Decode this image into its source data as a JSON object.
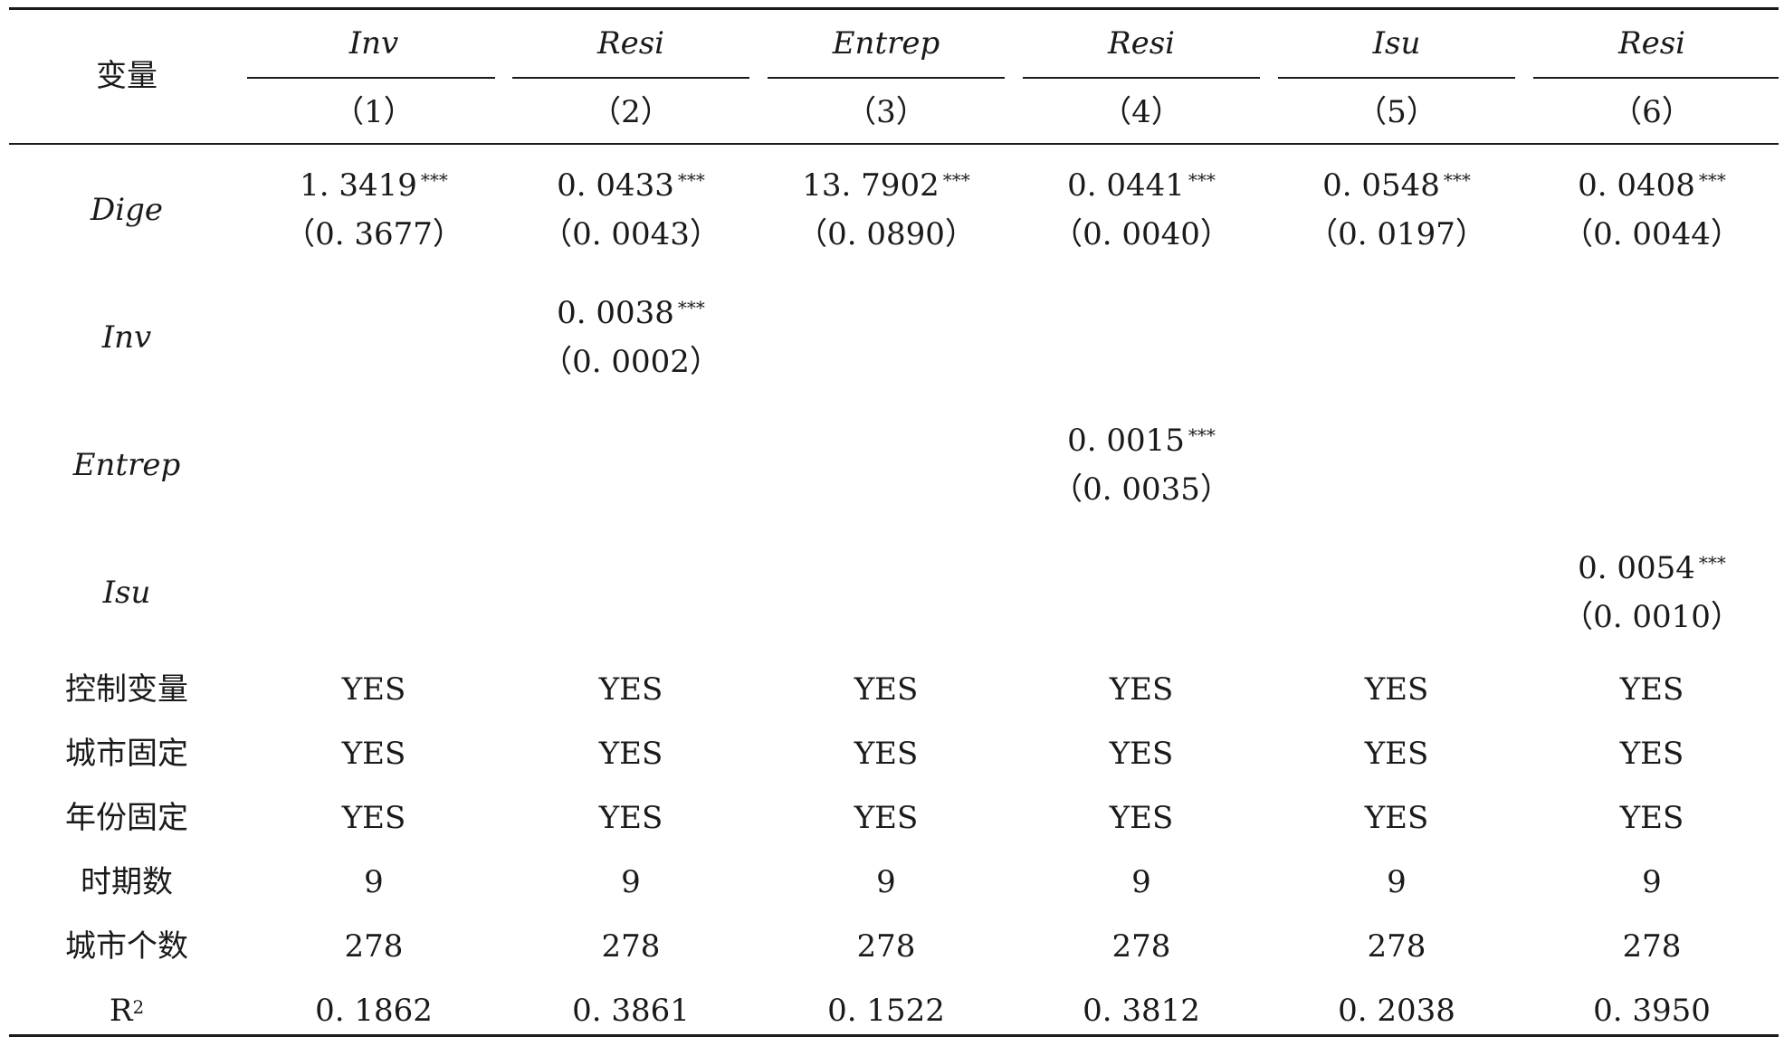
{
  "header": {
    "variable_label": "变量",
    "columns": [
      {
        "name": "Inv",
        "number": "（1）"
      },
      {
        "name": "Resi",
        "number": "（2）"
      },
      {
        "name": "Entrep",
        "number": "（3）"
      },
      {
        "name": "Resi",
        "number": "（4）"
      },
      {
        "name": "Isu",
        "number": "（5）"
      },
      {
        "name": "Resi",
        "number": "（6）"
      }
    ]
  },
  "rows": {
    "dige": {
      "label": "Dige",
      "coefs": [
        "1. 3419",
        "0. 0433",
        "13. 7902",
        "0. 0441",
        "0. 0548",
        "0. 0408"
      ],
      "stars": [
        "***",
        "***",
        "***",
        "***",
        "***",
        "***"
      ],
      "se": [
        "（0. 3677）",
        "（0. 0043）",
        "（0. 0890）",
        "（0. 0040）",
        "（0. 0197）",
        "（0. 0044）"
      ]
    },
    "inv": {
      "label": "Inv",
      "coef": "0. 0038",
      "stars": "***",
      "se": "（0. 0002）"
    },
    "entrep": {
      "label": "Entrep",
      "coef": "0. 0015",
      "stars": "***",
      "se": "（0. 0035）"
    },
    "isu": {
      "label": "Isu",
      "coef": "0. 0054",
      "stars": "***",
      "se": "（0. 0010）"
    },
    "controls": {
      "label": "控制变量",
      "values": [
        "YES",
        "YES",
        "YES",
        "YES",
        "YES",
        "YES"
      ]
    },
    "city_fe": {
      "label": "城市固定",
      "values": [
        "YES",
        "YES",
        "YES",
        "YES",
        "YES",
        "YES"
      ]
    },
    "year_fe": {
      "label": "年份固定",
      "values": [
        "YES",
        "YES",
        "YES",
        "YES",
        "YES",
        "YES"
      ]
    },
    "periods": {
      "label": "时期数",
      "values": [
        "9",
        "9",
        "9",
        "9",
        "9",
        "9"
      ]
    },
    "cities": {
      "label": "城市个数",
      "values": [
        "278",
        "278",
        "278",
        "278",
        "278",
        "278"
      ]
    },
    "r2": {
      "label_base": "R",
      "label_sup": "2",
      "values": [
        "0. 1862",
        "0. 3861",
        "0. 1522",
        "0. 3812",
        "0. 2038",
        "0. 3950"
      ]
    }
  }
}
